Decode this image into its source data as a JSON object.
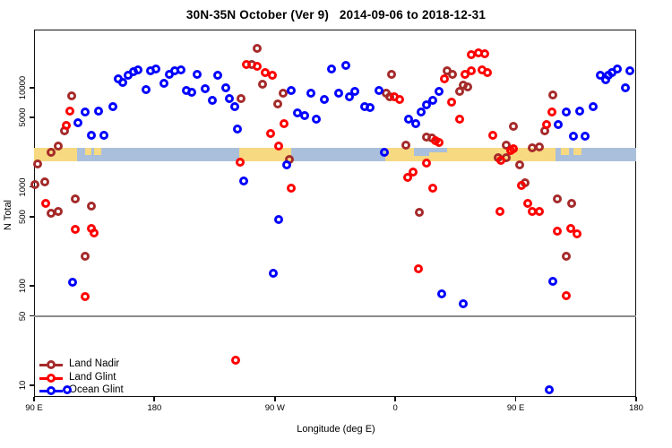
{
  "title": "30N-35N October (Ver 9)   2014-09-06 to 2018-12-31",
  "axes": {
    "x": {
      "label": "Longitude (deg E)",
      "range": [
        90,
        540
      ],
      "ticks": [
        {
          "lon": 90,
          "label": "90 E"
        },
        {
          "lon": 180,
          "label": "180"
        },
        {
          "lon": 270,
          "label": "90 W"
        },
        {
          "lon": 360,
          "label": "0"
        },
        {
          "lon": 450,
          "label": "90 E"
        },
        {
          "lon": 540,
          "label": "180"
        }
      ]
    },
    "y": {
      "label": "N Total",
      "scale": "log",
      "ticks": [
        10,
        50,
        100,
        500,
        1000,
        5000,
        10000
      ]
    }
  },
  "threshold_line": 50,
  "legend": {
    "items": [
      {
        "label": "Land Nadir",
        "color": "#A52A2A"
      },
      {
        "label": "Land Glint",
        "color": "#FF0000"
      },
      {
        "label": "Ocean Glint",
        "color": "#0000FF"
      }
    ]
  },
  "map_band": {
    "ocean_color": "#A9BFDB",
    "land_color": "#F7D981",
    "land_segments_lon": [
      [
        90,
        122
      ],
      [
        243.5,
        282
      ],
      [
        352.5,
        479.5
      ]
    ],
    "island_segments_lon": [
      [
        128,
        133
      ],
      [
        135,
        140
      ],
      [
        484,
        490
      ],
      [
        493,
        499
      ]
    ],
    "sea_notches_lon": [
      [
        374,
        385
      ],
      [
        385.5,
        399
      ]
    ]
  },
  "chart_data": {
    "type": "scatter",
    "xlabel": "Longitude (deg E)",
    "ylabel": "N Total",
    "x_range": [
      90,
      540
    ],
    "y_scale": "log",
    "y_ticks": [
      10,
      50,
      100,
      500,
      1000,
      5000,
      10000
    ],
    "series": [
      {
        "name": "Land Nadir",
        "color": "#A52A2A",
        "points": [
          [
            118,
            8300
          ],
          [
            113,
            3700
          ],
          [
            108,
            2570
          ],
          [
            103,
            2230
          ],
          [
            93,
            1700
          ],
          [
            91,
            1050
          ],
          [
            98,
            1130
          ],
          [
            121,
            760
          ],
          [
            133,
            640
          ],
          [
            103,
            545
          ],
          [
            108,
            560
          ],
          [
            128,
            200
          ],
          [
            245,
            7800
          ],
          [
            257,
            25000
          ],
          [
            253,
            17300
          ],
          [
            261,
            10800
          ],
          [
            272,
            6800
          ],
          [
            276,
            8900
          ],
          [
            281,
            1880
          ],
          [
            357,
            13700
          ],
          [
            353,
            8800
          ],
          [
            356,
            8100
          ],
          [
            368,
            2620
          ],
          [
            383,
            3200
          ],
          [
            387,
            3130
          ],
          [
            399,
            14800
          ],
          [
            403,
            13500
          ],
          [
            408,
            9200
          ],
          [
            411,
            10700
          ],
          [
            414,
            10200
          ],
          [
            378,
            557
          ],
          [
            443,
            2620
          ],
          [
            437,
            1990
          ],
          [
            443,
            1990
          ],
          [
            462,
            2470
          ],
          [
            468,
            2520
          ],
          [
            453,
            1680
          ],
          [
            457,
            1090
          ],
          [
            481,
            760
          ],
          [
            492,
            680
          ],
          [
            488,
            200
          ],
          [
            472,
            3650
          ],
          [
            448,
            4070
          ],
          [
            478,
            8400
          ]
        ]
      },
      {
        "name": "Land Glint",
        "color": "#FF0000",
        "points": [
          [
            117,
            5800
          ],
          [
            114,
            4150
          ],
          [
            99,
            675
          ],
          [
            121,
            375
          ],
          [
            133,
            383
          ],
          [
            135,
            345
          ],
          [
            128,
            79
          ],
          [
            249,
            17300
          ],
          [
            257,
            16600
          ],
          [
            263,
            14100
          ],
          [
            268,
            13400
          ],
          [
            277,
            4300
          ],
          [
            267,
            3440
          ],
          [
            273,
            2560
          ],
          [
            244,
            1760
          ],
          [
            282,
            975
          ],
          [
            241,
            18
          ],
          [
            359,
            8100
          ],
          [
            363,
            7600
          ],
          [
            397,
            12200
          ],
          [
            402,
            7200
          ],
          [
            408,
            4800
          ],
          [
            412,
            13700
          ],
          [
            417,
            14800
          ],
          [
            417,
            21500
          ],
          [
            422,
            22400
          ],
          [
            427,
            22000
          ],
          [
            425,
            15000
          ],
          [
            429,
            14100
          ],
          [
            433,
            3330
          ],
          [
            390,
            2940
          ],
          [
            393,
            2780
          ],
          [
            383,
            1750
          ],
          [
            373,
            1420
          ],
          [
            369,
            1250
          ],
          [
            388,
            975
          ],
          [
            377,
            148
          ],
          [
            446,
            2350
          ],
          [
            448,
            2450
          ],
          [
            439,
            1850
          ],
          [
            454,
            1040
          ],
          [
            459,
            680
          ],
          [
            462,
            566
          ],
          [
            468,
            566
          ],
          [
            438,
            570
          ],
          [
            481,
            360
          ],
          [
            491,
            382
          ],
          [
            496,
            337
          ],
          [
            477,
            5700
          ],
          [
            473,
            4240
          ],
          [
            488,
            80
          ]
        ]
      },
      {
        "name": "Ocean Glint",
        "color": "#0000FF",
        "points": [
          [
            123,
            4450
          ],
          [
            128,
            5740
          ],
          [
            138,
            5860
          ],
          [
            149,
            6470
          ],
          [
            133,
            3300
          ],
          [
            142,
            3300
          ],
          [
            153,
            12200
          ],
          [
            156,
            11300
          ],
          [
            160,
            13300
          ],
          [
            164,
            14400
          ],
          [
            168,
            15000
          ],
          [
            174,
            9500
          ],
          [
            177,
            14700
          ],
          [
            181,
            15300
          ],
          [
            187,
            11100
          ],
          [
            191,
            13600
          ],
          [
            195,
            14700
          ],
          [
            200,
            15000
          ],
          [
            212,
            13600
          ],
          [
            227,
            13300
          ],
          [
            204,
            9400
          ],
          [
            208,
            9000
          ],
          [
            218,
            9800
          ],
          [
            233,
            10000
          ],
          [
            223,
            7500
          ],
          [
            236,
            7800
          ],
          [
            240,
            6470
          ],
          [
            242,
            3800
          ],
          [
            247,
            1150
          ],
          [
            279,
            1670
          ],
          [
            273,
            470
          ],
          [
            269,
            134
          ],
          [
            282,
            9400
          ],
          [
            287,
            5550
          ],
          [
            292,
            5200
          ],
          [
            297,
            8800
          ],
          [
            301,
            4780
          ],
          [
            307,
            7600
          ],
          [
            312,
            15500
          ],
          [
            323,
            16900
          ],
          [
            318,
            8800
          ],
          [
            326,
            8100
          ],
          [
            330,
            9200
          ],
          [
            337,
            6470
          ],
          [
            341,
            6330
          ],
          [
            348,
            9400
          ],
          [
            370,
            4780
          ],
          [
            375,
            4330
          ],
          [
            379,
            5740
          ],
          [
            383,
            6770
          ],
          [
            388,
            7500
          ],
          [
            393,
            9200
          ],
          [
            352,
            2220
          ],
          [
            395,
            83
          ],
          [
            411,
            67
          ],
          [
            478,
            111
          ],
          [
            475,
            9
          ],
          [
            115,
            9
          ],
          [
            119,
            110
          ],
          [
            482,
            4240
          ],
          [
            488,
            5740
          ],
          [
            498,
            5860
          ],
          [
            508,
            6470
          ],
          [
            493,
            3230
          ],
          [
            502,
            3230
          ],
          [
            513,
            13300
          ],
          [
            517,
            12000
          ],
          [
            519,
            13300
          ],
          [
            522,
            14100
          ],
          [
            526,
            15500
          ],
          [
            535,
            14800
          ],
          [
            532,
            9900
          ]
        ]
      }
    ]
  }
}
